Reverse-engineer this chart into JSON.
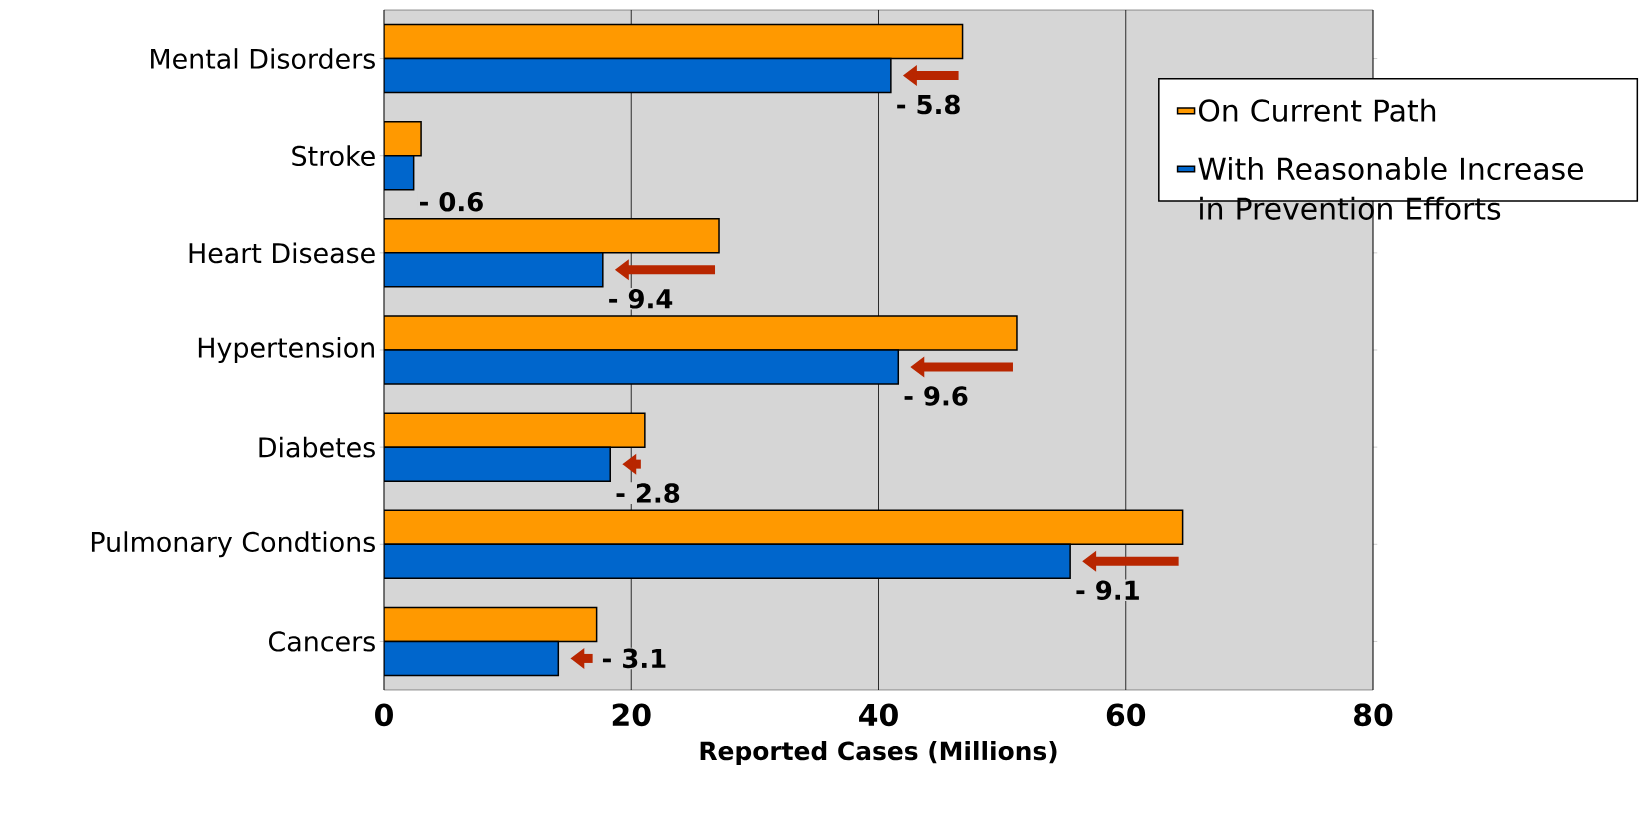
{
  "chart_data": {
    "type": "bar",
    "orientation": "horizontal",
    "categories": [
      "Mental Disorders",
      "Stroke",
      "Heart Disease",
      "Hypertension",
      "Diabetes",
      "Pulmonary Condtions",
      "Cancers"
    ],
    "series": [
      {
        "name": "On Current Path",
        "color": "#ff9900",
        "values": [
          46.8,
          3.0,
          27.1,
          51.2,
          21.1,
          64.6,
          17.2
        ]
      },
      {
        "name": "With Reasonable Increase in Prevention Efforts",
        "color": "#0066cc",
        "values": [
          41.0,
          2.4,
          17.7,
          41.6,
          18.3,
          55.5,
          14.1
        ]
      }
    ],
    "xlabel": "Reported Cases (Millions)",
    "xlim": [
      0,
      80
    ],
    "xticks": [
      0,
      20,
      40,
      60,
      80
    ],
    "grid": "x",
    "legend": "right",
    "annotations": [
      {
        "text": "- 5.8",
        "x": 41.0,
        "y": "Mental Disorders"
      },
      {
        "text": "- 0.6",
        "x": 2.4,
        "y": "Stroke"
      },
      {
        "text": "- 9.4",
        "x": 17.7,
        "y": "Heart Disease"
      },
      {
        "text": "- 9.6",
        "x": 41.6,
        "y": "Hypertension"
      },
      {
        "text": "- 2.8",
        "x": 18.3,
        "y": "Diabetes"
      },
      {
        "text": "- 9.1",
        "x": 55.5,
        "y": "Pulmonary Condtions"
      },
      {
        "text": "- 3.1",
        "x": 14.1,
        "y": "Cancers"
      }
    ]
  }
}
